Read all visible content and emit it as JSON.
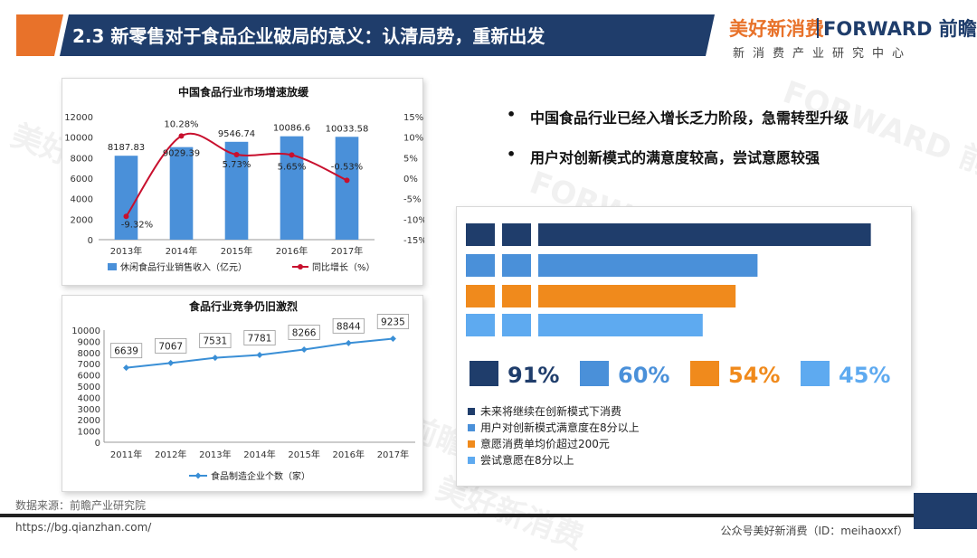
{
  "header": {
    "title": "2.3 新零售对于食品企业破局的意义：认清局势，重新出发",
    "logo_cn": "美好新消费",
    "logo_en": "FORWARD 前瞻",
    "logo_sub": "新消费产业研究中心"
  },
  "colors": {
    "navy": "#1f3d6b",
    "blue": "#4a90d9",
    "orange": "#f08a1c",
    "light_blue": "#5eaaf0",
    "red": "#c8102e"
  },
  "bullets": [
    "中国食品行业已经入增长乏力阶段，急需转型升级",
    "用户对创新模式的满意度较高，尝试意愿较强"
  ],
  "chart_data": [
    {
      "type": "bar+line",
      "title": "中国食品行业市场增速放缓",
      "categories": [
        "2013年",
        "2014年",
        "2015年",
        "2016年",
        "2017年"
      ],
      "series": [
        {
          "name": "休闲食品行业销售收入（亿元）",
          "type": "bar",
          "values": [
            8187.83,
            9029.39,
            9546.74,
            10086.6,
            10033.58
          ],
          "labels": [
            "8187.83",
            "9029.39",
            "9546.74",
            "10086.6",
            "10033.58"
          ]
        },
        {
          "name": "同比增长（%）",
          "type": "line",
          "axis": "right",
          "values": [
            -9.32,
            10.28,
            5.73,
            5.65,
            -0.53
          ],
          "labels": [
            "-9.32%",
            "10.28%",
            "5.73%",
            "5.65%",
            "-0.53%"
          ]
        }
      ],
      "ylim": [
        0,
        12000
      ],
      "yticks": [
        "0",
        "2000",
        "4000",
        "6000",
        "8000",
        "10000",
        "12000"
      ],
      "y2lim": [
        -15,
        15
      ],
      "y2ticks": [
        "-15%",
        "-10%",
        "-5%",
        "0%",
        "5%",
        "10%",
        "15%"
      ]
    },
    {
      "type": "line",
      "title": "食品行业竞争仍旧激烈",
      "categories": [
        "2011年",
        "2012年",
        "2013年",
        "2014年",
        "2015年",
        "2016年",
        "2017年"
      ],
      "series": [
        {
          "name": "食品制造企业个数（家）",
          "values": [
            6639,
            7067,
            7531,
            7781,
            8266,
            8844,
            9235
          ],
          "labels": [
            "6639",
            "7067",
            "7531",
            "7781",
            "8266",
            "8844",
            "9235"
          ]
        }
      ],
      "ylim": [
        0,
        10000
      ],
      "yticks": [
        "0",
        "1000",
        "2000",
        "3000",
        "4000",
        "5000",
        "6000",
        "7000",
        "8000",
        "9000",
        "10000"
      ]
    },
    {
      "type": "bar",
      "orientation": "horizontal",
      "series": [
        {
          "name": "未来将继续在创新模式下消费",
          "value": 91,
          "label": "91%",
          "color": "#1f3d6b"
        },
        {
          "name": "用户对创新模式满意度在8分以上",
          "value": 60,
          "label": "60%",
          "color": "#4a90d9"
        },
        {
          "name": "意愿消费单均价超过200元",
          "value": 54,
          "label": "54%",
          "color": "#f08a1c"
        },
        {
          "name": "尝试意愿在8分以上",
          "value": 45,
          "label": "45%",
          "color": "#5eaaf0"
        }
      ]
    }
  ],
  "footer": {
    "source": "数据来源：前瞻产业研究院",
    "url": "https://bg.qianzhan.com/",
    "account": "公众号美好新消费（ID：meihaoxxf）"
  },
  "watermarks": [
    "美好新消费",
    "FORWARD 前瞻"
  ]
}
